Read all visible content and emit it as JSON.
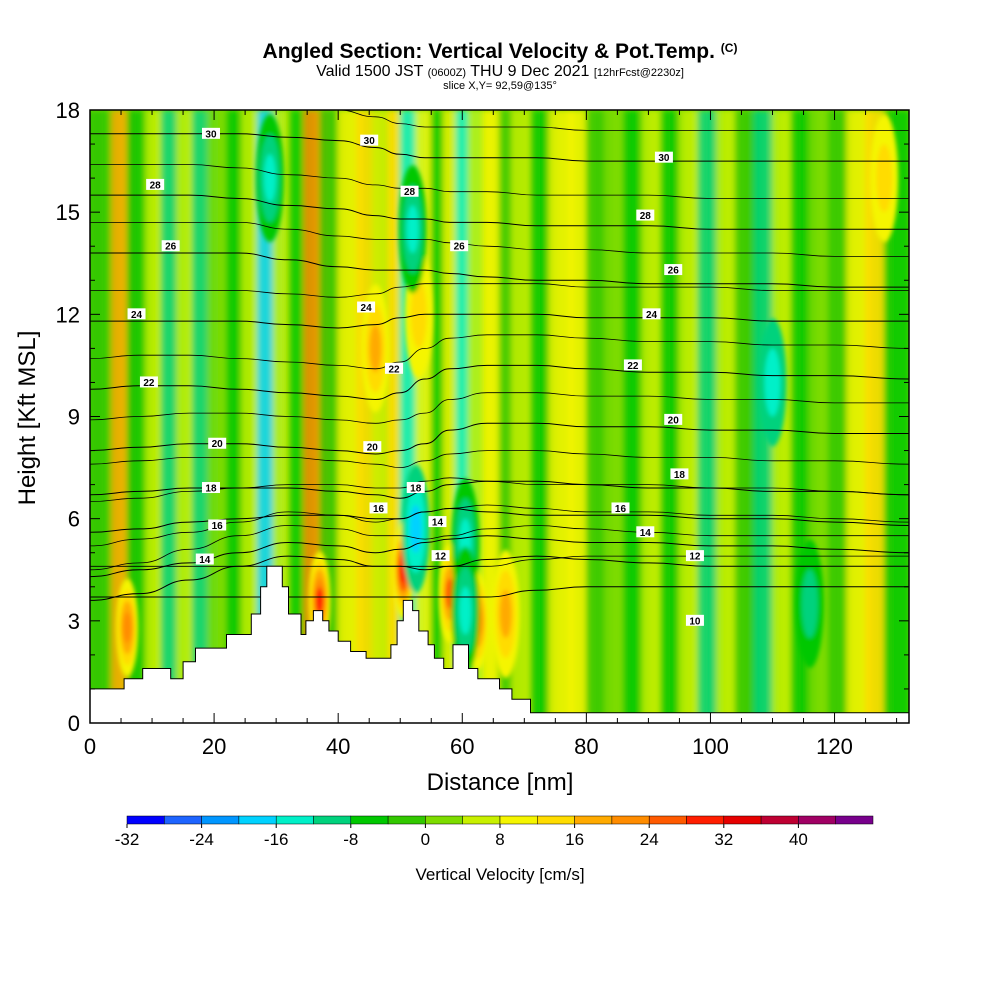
{
  "header": {
    "title": "Angled Section: Vertical Velocity & Pot.Temp.",
    "copyright": "(C)",
    "valid_prefix": "Valid 1500 JST",
    "valid_utc": "(0600Z)",
    "valid_date": "THU 9 Dec 2021",
    "forecast": "[12hrFcst@2230z]",
    "slice": "slice X,Y= 92,59@135°"
  },
  "chart_data": {
    "type": "heatmap",
    "title": "Angled Section: Vertical Velocity & Pot.Temp.",
    "xlabel": "Distance [nm]",
    "ylabel": "Height [Kft MSL]",
    "xlim": [
      0,
      132
    ],
    "ylim": [
      0,
      18
    ],
    "x_ticks": [
      0,
      20,
      40,
      60,
      80,
      100,
      120
    ],
    "y_ticks": [
      0,
      3,
      6,
      9,
      12,
      15,
      18
    ],
    "colorbar": {
      "title": "Vertical Velocity [cm/s]",
      "tick_labels": [
        -32,
        -24,
        -16,
        -8,
        0,
        8,
        16,
        24,
        32,
        40
      ],
      "colors": [
        "#0000ff",
        "#1e64ff",
        "#0096ff",
        "#00d2ff",
        "#00f0c8",
        "#00d27d",
        "#00c800",
        "#32c800",
        "#7ddc00",
        "#c8f000",
        "#f5f500",
        "#ffdc00",
        "#ffaa00",
        "#ff8c00",
        "#ff5a00",
        "#ff1e00",
        "#e60000",
        "#be0032",
        "#a00064",
        "#78008c"
      ]
    },
    "vertical_velocity_bands": [
      {
        "x": 0,
        "w": -2
      },
      {
        "x": 2.5,
        "w": -4
      },
      {
        "x": 5.5,
        "w": 16
      },
      {
        "x": 8,
        "w": -6
      },
      {
        "x": 11,
        "w": 4
      },
      {
        "x": 13.5,
        "w": -12
      },
      {
        "x": 16,
        "w": 6
      },
      {
        "x": 18.5,
        "w": -10
      },
      {
        "x": 21,
        "w": 2
      },
      {
        "x": 24,
        "w": -6
      },
      {
        "x": 26.5,
        "w": 6
      },
      {
        "x": 29,
        "w": -18
      },
      {
        "x": 31.5,
        "w": 4
      },
      {
        "x": 34,
        "w": -6
      },
      {
        "x": 36.5,
        "w": 22
      },
      {
        "x": 39,
        "w": -4
      },
      {
        "x": 42,
        "w": 8
      },
      {
        "x": 45,
        "w": 12
      },
      {
        "x": 47.5,
        "w": 6
      },
      {
        "x": 50,
        "w": 14
      },
      {
        "x": 52,
        "w": -16
      },
      {
        "x": 54.5,
        "w": 10
      },
      {
        "x": 57,
        "w": -6
      },
      {
        "x": 59,
        "w": 8
      },
      {
        "x": 61,
        "w": -14
      },
      {
        "x": 63,
        "w": 4
      },
      {
        "x": 65.5,
        "w": 10
      },
      {
        "x": 68,
        "w": -4
      },
      {
        "x": 70,
        "w": 4
      },
      {
        "x": 73,
        "w": -8
      },
      {
        "x": 76,
        "w": 8
      },
      {
        "x": 79,
        "w": 10
      },
      {
        "x": 82,
        "w": -4
      },
      {
        "x": 85,
        "w": 2
      },
      {
        "x": 88,
        "w": -8
      },
      {
        "x": 91,
        "w": 4
      },
      {
        "x": 94,
        "w": -6
      },
      {
        "x": 97,
        "w": 6
      },
      {
        "x": 100,
        "w": -10
      },
      {
        "x": 103,
        "w": 6
      },
      {
        "x": 106,
        "w": -4
      },
      {
        "x": 109,
        "w": -12
      },
      {
        "x": 112,
        "w": 4
      },
      {
        "x": 115,
        "w": -8
      },
      {
        "x": 118,
        "w": 2
      },
      {
        "x": 121,
        "w": -4
      },
      {
        "x": 124,
        "w": 10
      },
      {
        "x": 127,
        "w": 12
      },
      {
        "x": 130,
        "w": -6
      }
    ],
    "updraft_cores": [
      {
        "x": 6,
        "y": 2.8,
        "w": 22
      },
      {
        "x": 37,
        "y": 3.6,
        "w": 28
      },
      {
        "x": 50.5,
        "y": 4.5,
        "w": 30
      },
      {
        "x": 58,
        "y": 3.8,
        "w": 24
      },
      {
        "x": 62.5,
        "y": 3.0,
        "w": 22
      },
      {
        "x": 67,
        "y": 3.2,
        "w": 18
      },
      {
        "x": 46,
        "y": 11,
        "w": 16
      },
      {
        "x": 53,
        "y": 12,
        "w": 14
      },
      {
        "x": 128,
        "y": 16,
        "w": 14
      }
    ],
    "downdraft_cores": [
      {
        "x": 52.5,
        "y": 5.7,
        "w": -18
      },
      {
        "x": 52,
        "y": 14.5,
        "w": -16
      },
      {
        "x": 60.5,
        "y": 5.3,
        "w": -16
      },
      {
        "x": 60.5,
        "y": 3.3,
        "w": -16
      },
      {
        "x": 29,
        "y": 16,
        "w": -16
      },
      {
        "x": 110,
        "y": 10,
        "w": -14
      },
      {
        "x": 116,
        "y": 3.5,
        "w": -10
      }
    ],
    "isentropes": [
      {
        "theta": 10,
        "y": [
          3.7,
          3.7,
          3.7,
          3.7,
          3.7,
          3.7,
          3.7,
          3.7,
          3.7,
          3.7,
          3.7,
          3.9,
          4.0,
          4.0,
          4.0,
          4.0,
          4.0,
          4.0
        ]
      },
      {
        "theta": 12,
        "y": [
          3.6,
          3.8,
          4.2,
          4.6,
          4.9,
          4.8,
          4.6,
          4.6,
          4.5,
          4.6,
          4.8,
          4.9,
          4.8,
          4.7,
          4.6,
          4.6,
          4.6,
          4.6
        ]
      },
      {
        "theta": 14,
        "y": [
          4.3,
          4.5,
          4.7,
          5.0,
          5.3,
          5.2,
          5.0,
          5.1,
          5.3,
          5.4,
          5.5,
          5.4,
          5.3,
          5.3,
          5.2,
          5.2,
          5.1,
          5.0
        ]
      },
      {
        "theta": 16,
        "y": [
          5.6,
          5.7,
          5.9,
          6.0,
          6.1,
          6.1,
          6.0,
          6.0,
          6.2,
          6.3,
          6.2,
          6.1,
          6.1,
          6.1,
          6.0,
          6.0,
          5.9,
          5.8
        ]
      },
      {
        "theta": 18,
        "y": [
          6.7,
          6.8,
          6.9,
          6.9,
          6.9,
          6.8,
          6.7,
          6.6,
          6.8,
          7.0,
          7.1,
          7.1,
          7.0,
          6.9,
          6.9,
          6.8,
          6.8,
          6.7
        ]
      },
      {
        "theta": 20,
        "y": [
          8.0,
          8.1,
          8.2,
          8.2,
          8.1,
          8.0,
          7.9,
          8.0,
          8.2,
          8.6,
          8.8,
          8.8,
          8.7,
          8.7,
          8.6,
          8.6,
          8.5,
          8.5
        ]
      },
      {
        "theta": 22,
        "y": [
          9.8,
          9.9,
          9.9,
          9.8,
          9.7,
          9.6,
          9.5,
          9.7,
          10.1,
          10.4,
          10.5,
          10.5,
          10.4,
          10.3,
          10.3,
          10.2,
          10.2,
          10.1
        ]
      },
      {
        "theta": 24,
        "y": [
          11.8,
          11.8,
          11.8,
          11.8,
          11.7,
          11.6,
          11.7,
          11.9,
          12.0,
          12.0,
          12.0,
          12.0,
          11.9,
          11.9,
          11.9,
          11.8,
          11.8,
          11.8
        ]
      },
      {
        "theta": 26,
        "y": [
          13.8,
          13.8,
          13.8,
          13.8,
          13.6,
          13.4,
          13.3,
          13.3,
          13.3,
          13.2,
          13.1,
          13.0,
          13.0,
          12.9,
          12.9,
          12.9,
          12.8,
          12.8
        ]
      },
      {
        "theta": 28,
        "y": [
          15.5,
          15.5,
          15.5,
          15.4,
          15.2,
          15.1,
          14.9,
          14.8,
          14.8,
          14.7,
          14.7,
          14.6,
          14.6,
          14.6,
          14.5,
          14.5,
          14.5,
          14.5
        ]
      },
      {
        "theta": 30,
        "y": [
          17.3,
          17.3,
          17.3,
          17.3,
          17.2,
          17.1,
          16.9,
          16.7,
          16.6,
          16.6,
          16.6,
          16.6,
          16.5,
          16.5,
          16.5,
          16.5,
          16.5,
          16.5
        ]
      }
    ],
    "isentrope_x": [
      0,
      8,
      16,
      24,
      32,
      40,
      46,
      50,
      54,
      58,
      64,
      72,
      80,
      90,
      100,
      110,
      120,
      132
    ],
    "contour_labels": [
      {
        "text": "30",
        "x": 19.5,
        "y": 17.3
      },
      {
        "text": "30",
        "x": 45,
        "y": 17.1
      },
      {
        "text": "30",
        "x": 92.5,
        "y": 16.6
      },
      {
        "text": "28",
        "x": 10.5,
        "y": 15.8
      },
      {
        "text": "28",
        "x": 51.5,
        "y": 15.6
      },
      {
        "text": "28",
        "x": 89.5,
        "y": 14.9
      },
      {
        "text": "26",
        "x": 13,
        "y": 14.0
      },
      {
        "text": "26",
        "x": 59.5,
        "y": 14.0
      },
      {
        "text": "26",
        "x": 94,
        "y": 13.3
      },
      {
        "text": "24",
        "x": 7.5,
        "y": 12.0
      },
      {
        "text": "24",
        "x": 44.5,
        "y": 12.2
      },
      {
        "text": "24",
        "x": 90.5,
        "y": 12.0
      },
      {
        "text": "22",
        "x": 9.5,
        "y": 10.0
      },
      {
        "text": "22",
        "x": 49,
        "y": 10.4
      },
      {
        "text": "22",
        "x": 87.5,
        "y": 10.5
      },
      {
        "text": "20",
        "x": 20.5,
        "y": 8.2
      },
      {
        "text": "20",
        "x": 45.5,
        "y": 8.1
      },
      {
        "text": "20",
        "x": 94,
        "y": 8.9
      },
      {
        "text": "18",
        "x": 19.5,
        "y": 6.9
      },
      {
        "text": "18",
        "x": 52.5,
        "y": 6.9
      },
      {
        "text": "18",
        "x": 95,
        "y": 7.3
      },
      {
        "text": "16",
        "x": 20.5,
        "y": 5.8
      },
      {
        "text": "16",
        "x": 46.5,
        "y": 6.3
      },
      {
        "text": "16",
        "x": 85.5,
        "y": 6.3
      },
      {
        "text": "14",
        "x": 18.5,
        "y": 4.8
      },
      {
        "text": "14",
        "x": 56,
        "y": 5.9
      },
      {
        "text": "14",
        "x": 89.5,
        "y": 5.6
      },
      {
        "text": "12",
        "x": 56.5,
        "y": 4.9
      },
      {
        "text": "12",
        "x": 97.5,
        "y": 4.9
      },
      {
        "text": "10",
        "x": 97.5,
        "y": 3.0
      }
    ],
    "terrain_kft": [
      [
        0,
        1.0
      ],
      [
        5.5,
        1.0
      ],
      [
        5.5,
        1.3
      ],
      [
        8.5,
        1.3
      ],
      [
        8.5,
        1.6
      ],
      [
        13,
        1.6
      ],
      [
        13,
        1.3
      ],
      [
        15,
        1.3
      ],
      [
        15,
        1.8
      ],
      [
        17,
        1.8
      ],
      [
        17,
        2.2
      ],
      [
        22,
        2.2
      ],
      [
        22,
        2.6
      ],
      [
        26,
        2.6
      ],
      [
        26,
        3.2
      ],
      [
        27.5,
        3.2
      ],
      [
        27.5,
        4.0
      ],
      [
        28.5,
        4.0
      ],
      [
        28.5,
        4.6
      ],
      [
        31,
        4.6
      ],
      [
        31,
        4.0
      ],
      [
        32,
        4.0
      ],
      [
        32,
        3.2
      ],
      [
        34,
        3.2
      ],
      [
        34,
        2.6
      ],
      [
        34.8,
        2.6
      ],
      [
        34.8,
        3.0
      ],
      [
        36,
        3.0
      ],
      [
        36,
        3.3
      ],
      [
        37.5,
        3.3
      ],
      [
        37.5,
        3.0
      ],
      [
        38.5,
        3.0
      ],
      [
        38.5,
        2.7
      ],
      [
        40,
        2.7
      ],
      [
        40,
        2.4
      ],
      [
        42,
        2.4
      ],
      [
        42,
        2.1
      ],
      [
        44.5,
        2.1
      ],
      [
        44.5,
        1.9
      ],
      [
        48.5,
        1.9
      ],
      [
        48.5,
        2.3
      ],
      [
        49.5,
        2.3
      ],
      [
        49.5,
        3.0
      ],
      [
        50.5,
        3.0
      ],
      [
        50.5,
        3.6
      ],
      [
        52,
        3.6
      ],
      [
        52,
        3.3
      ],
      [
        53,
        3.3
      ],
      [
        53,
        2.7
      ],
      [
        54.5,
        2.7
      ],
      [
        54.5,
        2.3
      ],
      [
        55.5,
        2.3
      ],
      [
        55.5,
        1.9
      ],
      [
        57,
        1.9
      ],
      [
        57,
        1.6
      ],
      [
        58.5,
        1.6
      ],
      [
        58.5,
        2.3
      ],
      [
        60,
        2.3
      ],
      [
        60,
        2.3
      ],
      [
        61,
        2.3
      ],
      [
        61,
        1.6
      ],
      [
        62.5,
        1.6
      ],
      [
        62.5,
        1.3
      ],
      [
        66,
        1.3
      ],
      [
        66,
        1.0
      ],
      [
        68,
        1.0
      ],
      [
        68,
        0.7
      ],
      [
        71,
        0.7
      ],
      [
        71,
        0.3
      ],
      [
        132,
        0.3
      ]
    ]
  }
}
